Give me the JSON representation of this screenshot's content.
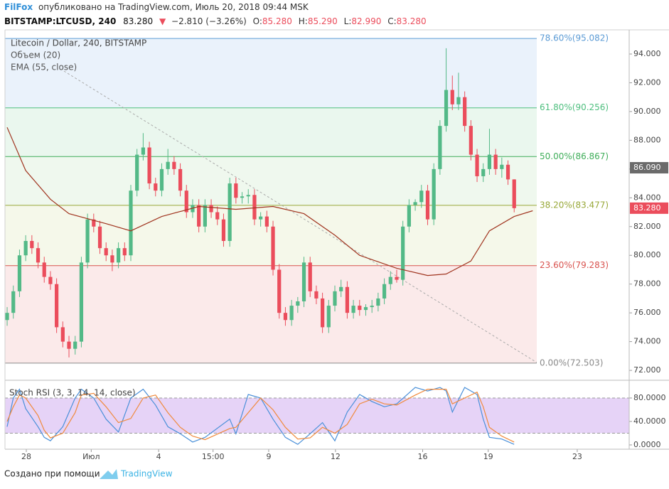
{
  "chart_data": {
    "type": "candlestick",
    "author": "FilFox",
    "published": "опубликовано на TradingView.com, Июль 20, 2018 09:44 MSK",
    "symbol": "BITSTAMP:LTCUSD, 240",
    "last": "83.280",
    "change_arrow": "▼",
    "change": "−2.810 (−3.26%)",
    "ohlc_fields": [
      {
        "name": "O:",
        "value": "85.280"
      },
      {
        "name": "H:",
        "value": "85.290"
      },
      {
        "name": "L:",
        "value": "82.990"
      },
      {
        "name": "C:",
        "value": "83.280"
      }
    ],
    "title": "Litecoin / Dollar, 240, BITSTAMP",
    "indicators": [
      "Объем (20)",
      "EMA (55, close)"
    ],
    "up_color": "#53b987",
    "down_color": "#eb4d5c",
    "ylim": [
      71.56,
      95.68
    ],
    "xlim": [
      -0.35,
      100.6
    ],
    "yticks": [
      {
        "value": 72,
        "label": "72.000"
      },
      {
        "value": 74,
        "label": "74.000"
      },
      {
        "value": 76,
        "label": "76.000"
      },
      {
        "value": 78,
        "label": "78.000"
      },
      {
        "value": 80,
        "label": "80.000"
      },
      {
        "value": 82,
        "label": "82.000"
      },
      {
        "value": 84,
        "label": "84.000"
      },
      {
        "value": 86,
        "label": "86.000"
      },
      {
        "value": 88,
        "label": "88.000"
      },
      {
        "value": 90,
        "label": "90.000"
      },
      {
        "value": 92,
        "label": "92.000"
      },
      {
        "value": 94,
        "label": "94.000"
      }
    ],
    "xticks": [
      {
        "value": 3.1,
        "label": "28"
      },
      {
        "value": 13.6,
        "label": "Июл"
      },
      {
        "value": 24.5,
        "label": "4"
      },
      {
        "value": 33.3,
        "label": "15:00"
      },
      {
        "value": 42.3,
        "label": "9"
      },
      {
        "value": 53.1,
        "label": "12"
      },
      {
        "value": 67.2,
        "label": "16"
      },
      {
        "value": 77.8,
        "label": "19"
      },
      {
        "value": 92.2,
        "label": "23"
      }
    ],
    "fib_levels": [
      {
        "value": 95.082,
        "label": "78.60%(95.082)",
        "color": "#5b9bd5",
        "fill": "#eaf2fb"
      },
      {
        "value": 90.256,
        "label": "61.80%(90.256)",
        "color": "#4fbf7f",
        "fill": "#eaf7ee"
      },
      {
        "value": 86.867,
        "label": "50.00%(86.867)",
        "color": "#3fae5a",
        "fill": "#eff8ee"
      },
      {
        "value": 83.477,
        "label": "38.20%(83.477)",
        "color": "#98a838",
        "fill": "#f5f8ea"
      },
      {
        "value": 79.283,
        "label": "23.60%(79.283)",
        "color": "#d9534f",
        "fill": "#fbeaea"
      },
      {
        "value": 72.503,
        "label": "0.00%(72.503)",
        "color": "#8a8a8a"
      }
    ],
    "price_tags": [
      {
        "value": 86.09,
        "label": "86.090",
        "color": "#6b6b6b"
      },
      {
        "value": 83.28,
        "label": "83.280",
        "color": "#eb4d5c"
      }
    ],
    "ohlc": [
      [
        75.5,
        76.4,
        75.1,
        76.0
      ],
      [
        76.0,
        77.9,
        75.6,
        77.5
      ],
      [
        77.5,
        80.4,
        77.1,
        80.0
      ],
      [
        80.0,
        81.4,
        79.6,
        81.0
      ],
      [
        81.0,
        81.4,
        80.1,
        80.5
      ],
      [
        80.5,
        80.9,
        79.1,
        79.5
      ],
      [
        79.5,
        79.9,
        78.1,
        78.5
      ],
      [
        78.5,
        78.9,
        77.6,
        78.0
      ],
      [
        78.0,
        78.4,
        74.6,
        75.0
      ],
      [
        75.0,
        75.4,
        73.6,
        74.0
      ],
      [
        74.0,
        74.4,
        72.9,
        73.5
      ],
      [
        73.5,
        74.4,
        73.1,
        74.0
      ],
      [
        74.0,
        79.9,
        73.6,
        79.5
      ],
      [
        79.5,
        82.9,
        79.1,
        82.5
      ],
      [
        82.5,
        82.9,
        81.6,
        82.0
      ],
      [
        82.0,
        82.4,
        80.1,
        80.5
      ],
      [
        80.5,
        80.9,
        79.6,
        80.0
      ],
      [
        80.0,
        80.4,
        78.9,
        79.5
      ],
      [
        79.5,
        80.9,
        79.1,
        80.5
      ],
      [
        80.5,
        80.9,
        79.6,
        80.0
      ],
      [
        80.0,
        84.9,
        79.6,
        84.5
      ],
      [
        84.5,
        87.4,
        84.1,
        87.0
      ],
      [
        87.0,
        88.5,
        86.6,
        87.5
      ],
      [
        87.5,
        87.9,
        84.6,
        85.0
      ],
      [
        85.0,
        85.4,
        84.1,
        84.5
      ],
      [
        84.5,
        86.4,
        84.1,
        86.0
      ],
      [
        86.0,
        87.4,
        85.6,
        86.5
      ],
      [
        86.5,
        86.9,
        85.6,
        86.0
      ],
      [
        86.0,
        86.4,
        84.1,
        84.5
      ],
      [
        84.5,
        84.9,
        82.6,
        83.0
      ],
      [
        83.0,
        83.9,
        82.6,
        83.5
      ],
      [
        83.5,
        83.9,
        81.6,
        82.0
      ],
      [
        82.0,
        83.9,
        81.6,
        83.5
      ],
      [
        83.5,
        83.9,
        82.6,
        83.0
      ],
      [
        83.0,
        83.4,
        82.1,
        82.5
      ],
      [
        82.5,
        82.9,
        80.6,
        81.0
      ],
      [
        81.0,
        85.4,
        80.6,
        85.0
      ],
      [
        85.0,
        85.4,
        83.6,
        84.0
      ],
      [
        84.0,
        84.4,
        83.6,
        84.1
      ],
      [
        84.1,
        84.6,
        83.6,
        84.2
      ],
      [
        84.2,
        84.6,
        82.1,
        82.5
      ],
      [
        82.5,
        83.0,
        82.0,
        82.7
      ],
      [
        82.7,
        83.1,
        81.6,
        82.0
      ],
      [
        82.0,
        82.4,
        78.6,
        79.0
      ],
      [
        79.0,
        79.4,
        75.6,
        76.0
      ],
      [
        76.0,
        76.4,
        75.1,
        75.5
      ],
      [
        75.5,
        76.9,
        75.1,
        76.5
      ],
      [
        76.5,
        77.1,
        76.0,
        76.8
      ],
      [
        76.8,
        79.9,
        76.4,
        79.5
      ],
      [
        79.5,
        79.9,
        77.1,
        77.5
      ],
      [
        77.5,
        77.9,
        76.6,
        77.0
      ],
      [
        77.0,
        77.4,
        74.6,
        75.0
      ],
      [
        75.0,
        76.9,
        74.6,
        76.5
      ],
      [
        76.5,
        77.9,
        76.1,
        77.5
      ],
      [
        77.5,
        78.3,
        77.1,
        77.8
      ],
      [
        77.8,
        78.2,
        75.6,
        76.0
      ],
      [
        76.0,
        76.9,
        75.6,
        76.5
      ],
      [
        76.5,
        76.9,
        75.8,
        76.2
      ],
      [
        76.2,
        76.6,
        75.8,
        76.4
      ],
      [
        76.4,
        76.9,
        76.0,
        76.5
      ],
      [
        76.5,
        77.4,
        76.1,
        77.0
      ],
      [
        77.0,
        78.4,
        76.6,
        78.0
      ],
      [
        78.0,
        78.9,
        77.6,
        78.5
      ],
      [
        78.5,
        79.0,
        78.1,
        78.3
      ],
      [
        78.3,
        82.4,
        77.9,
        82.0
      ],
      [
        82.0,
        83.9,
        81.6,
        83.5
      ],
      [
        83.5,
        83.9,
        83.1,
        83.7
      ],
      [
        83.7,
        84.9,
        83.3,
        84.5
      ],
      [
        84.5,
        84.9,
        82.1,
        82.5
      ],
      [
        82.5,
        86.4,
        82.1,
        86.0
      ],
      [
        86.0,
        89.4,
        85.6,
        89.0
      ],
      [
        89.0,
        94.4,
        88.6,
        91.5
      ],
      [
        91.5,
        92.5,
        90.1,
        90.5
      ],
      [
        90.5,
        92.7,
        90.1,
        91.0
      ],
      [
        91.0,
        91.4,
        88.6,
        89.0
      ],
      [
        89.0,
        89.4,
        86.6,
        87.0
      ],
      [
        87.0,
        87.4,
        85.1,
        85.5
      ],
      [
        85.5,
        86.4,
        85.1,
        86.0
      ],
      [
        86.0,
        88.8,
        85.6,
        87.0
      ],
      [
        87.0,
        87.4,
        85.6,
        86.0
      ],
      [
        86.0,
        86.8,
        85.4,
        86.3
      ],
      [
        86.3,
        86.6,
        84.9,
        85.28
      ],
      [
        85.28,
        85.29,
        82.99,
        83.28
      ]
    ],
    "ema": {
      "color": "#a0341f",
      "x": [
        0,
        3,
        7,
        10,
        16,
        20,
        25,
        31,
        37,
        43,
        48,
        53,
        57,
        63,
        68,
        71,
        75,
        78,
        82,
        85
      ],
      "values": [
        88.9,
        85.9,
        83.9,
        82.9,
        82.2,
        81.7,
        82.7,
        83.4,
        83.2,
        83.4,
        82.9,
        81.4,
        80.0,
        79.1,
        78.6,
        78.7,
        79.6,
        81.7,
        82.7,
        83.1
      ]
    },
    "stoch": {
      "title": "Stoch RSI (3, 3, 14, 14, close)",
      "ylim": [
        -7.3,
        104.2
      ],
      "band": [
        20,
        80
      ],
      "yticks": [
        {
          "value": 80,
          "label": "80.0000"
        },
        {
          "value": 40,
          "label": "40.0000"
        },
        {
          "value": 0,
          "label": "0.0000"
        }
      ],
      "x": [
        0,
        1,
        2,
        3,
        5,
        6,
        7,
        9,
        11,
        12,
        14,
        16,
        18,
        20,
        22,
        24,
        26,
        28,
        30,
        32,
        36,
        37,
        39,
        41,
        43,
        45,
        47,
        49,
        51,
        53,
        55,
        57,
        59,
        61,
        63,
        66,
        68,
        70,
        71,
        72,
        74,
        76,
        77,
        78,
        80,
        82
      ],
      "series": [
        {
          "color": "#4a90d9",
          "values": [
            31,
            80,
            95,
            62,
            31,
            13,
            7,
            31,
            80,
            95,
            80,
            44,
            22,
            80,
            95,
            68,
            31,
            19,
            5,
            13,
            44,
            19,
            86,
            80,
            44,
            13,
            1,
            19,
            38,
            7,
            56,
            86,
            74,
            65,
            70,
            98,
            92,
            98,
            92,
            56,
            98,
            86,
            44,
            13,
            10,
            1
          ]
        },
        {
          "color": "#f08a3c",
          "values": [
            40,
            65,
            85,
            80,
            50,
            25,
            12,
            20,
            55,
            85,
            88,
            65,
            38,
            45,
            80,
            85,
            55,
            30,
            15,
            9,
            28,
            30,
            55,
            80,
            60,
            30,
            10,
            12,
            30,
            20,
            35,
            70,
            78,
            70,
            68,
            85,
            95,
            95,
            95,
            70,
            80,
            90,
            65,
            30,
            15,
            5
          ]
        }
      ]
    },
    "footer": {
      "text": "Создано при помощи",
      "brand": "TradingView"
    }
  }
}
